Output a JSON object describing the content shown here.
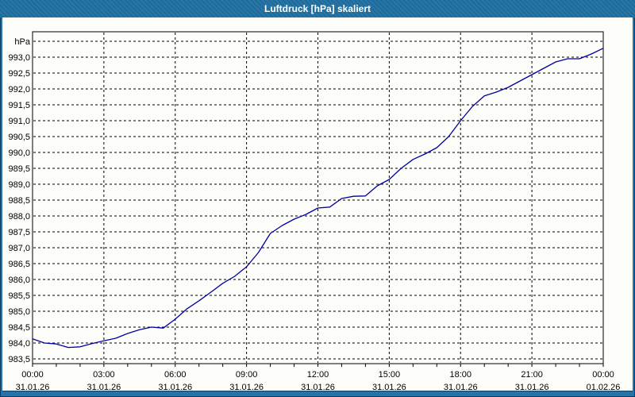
{
  "window": {
    "title": "Luftdruck [hPa] skaliert"
  },
  "colors": {
    "titlebar": "#1f70a2",
    "frame": "#2474a9",
    "frame_dark": "#0e3e61",
    "plot_background": "#fdfdfa",
    "grid": "#000000",
    "line": "#0000a0",
    "label": "#000000"
  },
  "chart_data": {
    "type": "line",
    "title": "Luftdruck [hPa] skaliert",
    "unit_label": "hPa",
    "grid": true,
    "legend": "none",
    "ylim": [
      983.35,
      993.8
    ],
    "y_axis": {
      "unit_label": "hPa",
      "top_gridline_value": 993.5,
      "step": 0.5,
      "ticks": [
        {
          "value": 993.0,
          "label": "993,0"
        },
        {
          "value": 992.5,
          "label": "992,5"
        },
        {
          "value": 992.0,
          "label": "992,0"
        },
        {
          "value": 991.5,
          "label": "991,5"
        },
        {
          "value": 991.0,
          "label": "991,0"
        },
        {
          "value": 990.5,
          "label": "990,5"
        },
        {
          "value": 990.0,
          "label": "990,0"
        },
        {
          "value": 989.5,
          "label": "989,5"
        },
        {
          "value": 989.0,
          "label": "989,0"
        },
        {
          "value": 988.5,
          "label": "988,5"
        },
        {
          "value": 988.0,
          "label": "988,0"
        },
        {
          "value": 987.5,
          "label": "987,5"
        },
        {
          "value": 987.0,
          "label": "987,0"
        },
        {
          "value": 986.5,
          "label": "986,5"
        },
        {
          "value": 986.0,
          "label": "986,0"
        },
        {
          "value": 985.5,
          "label": "985,5"
        },
        {
          "value": 985.0,
          "label": "985,0"
        },
        {
          "value": 984.5,
          "label": "984,5"
        },
        {
          "value": 984.0,
          "label": "984,0"
        },
        {
          "value": 983.5,
          "label": "983,5"
        }
      ]
    },
    "x_axis": {
      "start_hour": 0,
      "end_hour": 24,
      "major_tick_hours": 3,
      "minor_tick_hours": 1,
      "ticks": [
        {
          "hour": 0,
          "time": "00:00",
          "date": "31.01.26"
        },
        {
          "hour": 3,
          "time": "03:00",
          "date": "31.01.26"
        },
        {
          "hour": 6,
          "time": "06:00",
          "date": "31.01.26"
        },
        {
          "hour": 9,
          "time": "09:00",
          "date": "31.01.26"
        },
        {
          "hour": 12,
          "time": "12:00",
          "date": "31.01.26"
        },
        {
          "hour": 15,
          "time": "15:00",
          "date": "31.01.26"
        },
        {
          "hour": 18,
          "time": "18:00",
          "date": "31.01.26"
        },
        {
          "hour": 21,
          "time": "21:00",
          "date": "31.01.26"
        },
        {
          "hour": 24,
          "time": "00:00",
          "date": "01.02.26"
        }
      ]
    },
    "series": [
      {
        "name": "Luftdruck",
        "color": "#0000a0",
        "interval_hours": 0.5,
        "start_hour": 0,
        "values": [
          984.13,
          984.0,
          983.97,
          983.86,
          983.88,
          983.98,
          984.07,
          984.15,
          984.3,
          984.42,
          984.5,
          984.47,
          984.75,
          985.08,
          985.33,
          985.6,
          985.88,
          986.1,
          986.4,
          986.85,
          987.45,
          987.7,
          987.9,
          988.05,
          988.25,
          988.28,
          988.55,
          988.62,
          988.63,
          988.95,
          989.15,
          989.5,
          989.78,
          989.95,
          990.15,
          990.5,
          991.0,
          991.45,
          991.78,
          991.9,
          992.05,
          992.25,
          992.45,
          992.65,
          992.85,
          992.95,
          992.95,
          993.1,
          993.28
        ]
      }
    ]
  }
}
